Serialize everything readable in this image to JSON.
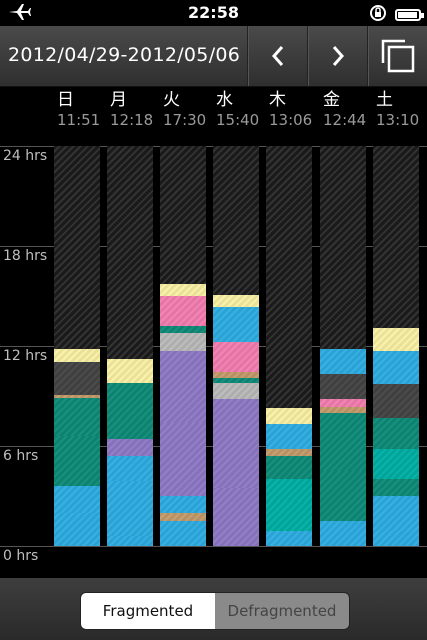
{
  "status": {
    "time": "22:58",
    "icons": [
      "airplane-icon",
      "rotation-lock-icon",
      "battery-icon"
    ]
  },
  "toolbar": {
    "date_range": "2012/04/29-2012/05/06",
    "prev_icon": "chevron-left-icon",
    "next_icon": "chevron-right-icon",
    "copy_icon": "copy-icon"
  },
  "days": [
    {
      "label": "日",
      "time": "11:51"
    },
    {
      "label": "月",
      "time": "12:18"
    },
    {
      "label": "火",
      "time": "17:30"
    },
    {
      "label": "水",
      "time": "15:40"
    },
    {
      "label": "木",
      "time": "13:06"
    },
    {
      "label": "金",
      "time": "12:44"
    },
    {
      "label": "土",
      "time": "13:10"
    }
  ],
  "axis": {
    "labels": [
      "24 hrs",
      "18 hrs",
      "12 hrs",
      "6 hrs",
      "0 hrs"
    ],
    "max_hours": 24
  },
  "colors": {
    "yellow": "#fbf2a6",
    "dark": "#454545",
    "orange": "#c59c6b",
    "teal": "#0f8c79",
    "cyan": "#1fa9b3",
    "blue": "#2eaee3",
    "purple": "#8f7ac7",
    "pink": "#f47fb0",
    "gray": "#bbbbbb",
    "aqua": "#00b0a5"
  },
  "chart_data": {
    "type": "bar",
    "stacked": true,
    "categories": [
      "日",
      "月",
      "火",
      "水",
      "木",
      "金",
      "土"
    ],
    "ylim": [
      0,
      24
    ],
    "columns": [
      [
        [
          "blue",
          2.0
        ],
        [
          "blue",
          1.6
        ],
        [
          "teal",
          3.0
        ],
        [
          "teal",
          2.3
        ],
        [
          "orange",
          0.15
        ],
        [
          "dark",
          2.0
        ],
        [
          "yellow",
          0.75
        ]
      ],
      [
        [
          "blue",
          0.6
        ],
        [
          "blue",
          3.3
        ],
        [
          "blue",
          1.5
        ],
        [
          "purple",
          1.0
        ],
        [
          "teal",
          1.2
        ],
        [
          "teal",
          2.2
        ],
        [
          "yellow",
          1.4
        ]
      ],
      [
        [
          "blue",
          1.5
        ],
        [
          "orange",
          0.5
        ],
        [
          "blue",
          1.0
        ],
        [
          "purple",
          4.4
        ],
        [
          "purple",
          4.3
        ],
        [
          "gray",
          1.1
        ],
        [
          "teal",
          0.4
        ],
        [
          "pink",
          1.8
        ],
        [
          "yellow",
          0.7
        ]
      ],
      [
        [
          "purple",
          3.5
        ],
        [
          "purple",
          5.3
        ],
        [
          "gray",
          1.0
        ],
        [
          "teal",
          0.3
        ],
        [
          "orange",
          0.35
        ],
        [
          "pink",
          1.8
        ],
        [
          "blue",
          2.1
        ],
        [
          "yellow",
          0.7
        ]
      ],
      [
        [
          "blue",
          0.9
        ],
        [
          "aqua",
          1.8
        ],
        [
          "aqua",
          1.3
        ],
        [
          "teal",
          1.4
        ],
        [
          "orange",
          0.4
        ],
        [
          "blue",
          1.5
        ],
        [
          "yellow",
          1.0
        ]
      ],
      [
        [
          "blue",
          1.5
        ],
        [
          "teal",
          3.0
        ],
        [
          "teal",
          3.5
        ],
        [
          "orange",
          0.35
        ],
        [
          "pink",
          0.5
        ],
        [
          "dark",
          1.5
        ],
        [
          "blue",
          1.5
        ]
      ],
      [
        [
          "blue",
          0.9
        ],
        [
          "blue",
          2.1
        ],
        [
          "teal",
          1.0
        ],
        [
          "aqua",
          1.8
        ],
        [
          "teal",
          1.9
        ],
        [
          "dark",
          2.0
        ],
        [
          "blue",
          2.0
        ],
        [
          "yellow",
          1.4
        ]
      ]
    ]
  },
  "segmented": {
    "fragmented": "Fragmented",
    "defragmented": "Defragmented"
  }
}
